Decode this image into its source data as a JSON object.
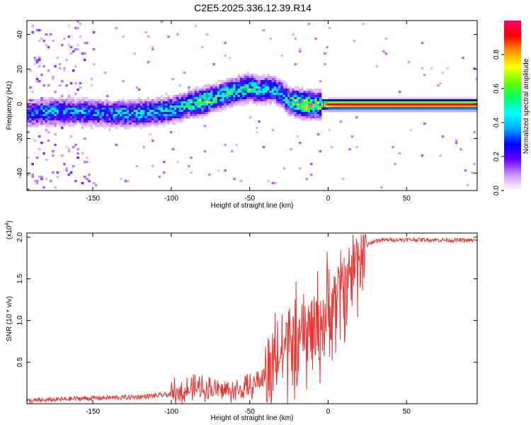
{
  "chart_data": [
    {
      "type": "heatmap",
      "title": "C2E5.2025.336.12.39.R14",
      "xlabel": "Height of straight line (km)",
      "ylabel": "Frequency (Hz)",
      "xlim": [
        -192,
        95
      ],
      "ylim": [
        -50,
        48
      ],
      "x_ticks": [
        -150,
        -100,
        -50,
        0,
        50
      ],
      "y_ticks": [
        -40,
        -20,
        0,
        20,
        40
      ],
      "colorbar": {
        "label": "Normalized spectral amplitude",
        "range": [
          0,
          1
        ],
        "ticks": [
          "0.0",
          "0.2",
          "0.4",
          "0.6",
          "0.8"
        ],
        "colors": [
          "#ffffff",
          "#cc99ff",
          "#6600ff",
          "#0000ff",
          "#00aaff",
          "#00ffff",
          "#00ff66",
          "#66ff00",
          "#ffff00",
          "#ff9900",
          "#ff0000",
          "#ff0066"
        ]
      },
      "ridge": {
        "x": [
          -192,
          -175,
          -160,
          -140,
          -125,
          -110,
          -100,
          -90,
          -80,
          -70,
          -60,
          -50,
          -45,
          -40,
          -35,
          -30,
          -25,
          -20,
          -15,
          -10,
          -5,
          0,
          10,
          30,
          60,
          95
        ],
        "f": [
          -5,
          -4,
          -4,
          -5,
          -5,
          -4,
          -3,
          0,
          2,
          5,
          8,
          10,
          8,
          9,
          9,
          6,
          2,
          1,
          0,
          0,
          0,
          0,
          0,
          0,
          0,
          0
        ],
        "amp": [
          0.35,
          0.45,
          0.4,
          0.4,
          0.45,
          0.45,
          0.5,
          0.5,
          0.7,
          0.55,
          0.55,
          0.6,
          0.5,
          0.45,
          0.5,
          0.45,
          0.55,
          0.75,
          0.8,
          0.7,
          0.7,
          0.95,
          0.98,
          0.98,
          0.98,
          0.98
        ]
      }
    },
    {
      "type": "line",
      "xlabel": "Height of straight line (km)",
      "ylabel": "SNR (10 * v/v)",
      "y_scale_label": "(x10",
      "y_scale_exp": "4",
      "y_scale_close": ")",
      "xlim": [
        -192,
        95
      ],
      "ylim": [
        0,
        2.05
      ],
      "x_ticks": [
        -150,
        -100,
        -50,
        0,
        50
      ],
      "y_ticks": [
        "0.5",
        "1.0",
        "1.5",
        "2.0"
      ],
      "color": "#ee3333",
      "trend": {
        "x": [
          -192,
          -160,
          -120,
          -100,
          -80,
          -60,
          -50,
          -40,
          -35,
          -30,
          -25,
          -20,
          -15,
          -10,
          -5,
          0,
          5,
          10,
          15,
          20,
          25,
          30,
          40,
          60,
          95
        ],
        "y": [
          0.02,
          0.05,
          0.07,
          0.1,
          0.15,
          0.12,
          0.15,
          0.3,
          0.45,
          0.6,
          0.7,
          0.7,
          0.8,
          0.9,
          0.95,
          1.1,
          1.25,
          1.4,
          1.6,
          1.8,
          1.9,
          1.96,
          1.97,
          1.97,
          1.96
        ]
      }
    }
  ]
}
